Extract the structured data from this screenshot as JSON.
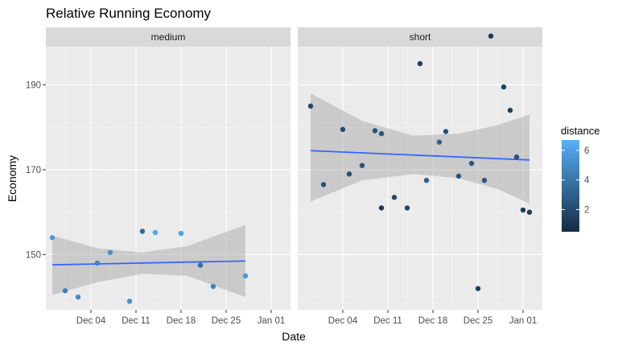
{
  "chart_data": {
    "type": "scatter",
    "title": "Relative Running Economy",
    "xlabel": "Date",
    "ylabel": "Economy",
    "x_ticks": [
      "Dec 04",
      "Dec 11",
      "Dec 18",
      "Dec 25",
      "Jan 01"
    ],
    "y_ticks": [
      150,
      170,
      190
    ],
    "xlim": [
      "2016-11-27",
      "2017-01-04"
    ],
    "ylim": [
      137,
      199
    ],
    "grid": true,
    "legend": {
      "title": "distance",
      "position": "right",
      "type": "colorbar",
      "range": [
        0.5,
        6.7
      ],
      "ticks": [
        2,
        4,
        6
      ],
      "low_color": "#132B43",
      "high_color": "#56B1F7"
    },
    "smooth": {
      "method": "lm",
      "se": true,
      "line_color": "#3366FF",
      "band_color": "#999999"
    },
    "panels": [
      {
        "label": "medium",
        "points": [
          {
            "x": "2016-11-28",
            "y": 154,
            "distance": 5.6
          },
          {
            "x": "2016-11-30",
            "y": 141.5,
            "distance": 4.4
          },
          {
            "x": "2016-12-02",
            "y": 140,
            "distance": 5.0
          },
          {
            "x": "2016-12-05",
            "y": 148,
            "distance": 4.7
          },
          {
            "x": "2016-12-07",
            "y": 150.5,
            "distance": 5.2
          },
          {
            "x": "2016-12-10",
            "y": 139,
            "distance": 5.2
          },
          {
            "x": "2016-12-12",
            "y": 155.5,
            "distance": 3.3
          },
          {
            "x": "2016-12-14",
            "y": 155.2,
            "distance": 6.2
          },
          {
            "x": "2016-12-18",
            "y": 155,
            "distance": 6.0
          },
          {
            "x": "2016-12-21",
            "y": 147.5,
            "distance": 3.7
          },
          {
            "x": "2016-12-23",
            "y": 142.5,
            "distance": 4.6
          },
          {
            "x": "2016-12-28",
            "y": 145,
            "distance": 5.6
          }
        ],
        "fit": {
          "x": [
            "2016-11-28",
            "2016-12-28"
          ],
          "y": [
            147.6,
            148.5
          ]
        },
        "band": {
          "x": [
            "2016-11-28",
            "2016-12-05",
            "2016-12-12",
            "2016-12-19",
            "2016-12-28"
          ],
          "upper": [
            154.5,
            151.5,
            150.5,
            152,
            157
          ],
          "lower": [
            140.5,
            143.5,
            145.5,
            145,
            140
          ]
        }
      },
      {
        "label": "short",
        "points": [
          {
            "x": "2016-11-29",
            "y": 185,
            "distance": 1.8
          },
          {
            "x": "2016-12-01",
            "y": 166.5,
            "distance": 2.2
          },
          {
            "x": "2016-12-04",
            "y": 179.5,
            "distance": 2.0
          },
          {
            "x": "2016-12-05",
            "y": 169,
            "distance": 2.3
          },
          {
            "x": "2016-12-07",
            "y": 171,
            "distance": 2.4
          },
          {
            "x": "2016-12-09",
            "y": 179.2,
            "distance": 2.4
          },
          {
            "x": "2016-12-10",
            "y": 178.5,
            "distance": 2.5
          },
          {
            "x": "2016-12-10",
            "y": 161,
            "distance": 1.0
          },
          {
            "x": "2016-12-12",
            "y": 163.5,
            "distance": 1.8
          },
          {
            "x": "2016-12-14",
            "y": 161,
            "distance": 1.6
          },
          {
            "x": "2016-12-16",
            "y": 195,
            "distance": 1.4
          },
          {
            "x": "2016-12-17",
            "y": 167.5,
            "distance": 3.0
          },
          {
            "x": "2016-12-19",
            "y": 176.5,
            "distance": 3.0
          },
          {
            "x": "2016-12-20",
            "y": 179,
            "distance": 2.3
          },
          {
            "x": "2016-12-22",
            "y": 168.5,
            "distance": 2.6
          },
          {
            "x": "2016-12-24",
            "y": 171.5,
            "distance": 2.6
          },
          {
            "x": "2016-12-25",
            "y": 142,
            "distance": 1.4
          },
          {
            "x": "2016-12-26",
            "y": 167.5,
            "distance": 2.6
          },
          {
            "x": "2016-12-27",
            "y": 201.5,
            "distance": 1.3
          },
          {
            "x": "2016-12-29",
            "y": 189.5,
            "distance": 1.5
          },
          {
            "x": "2016-12-30",
            "y": 184,
            "distance": 1.5
          },
          {
            "x": "2016-12-31",
            "y": 173,
            "distance": 2.5
          },
          {
            "x": "2017-01-01",
            "y": 160.5,
            "distance": 1.2
          },
          {
            "x": "2017-01-02",
            "y": 160,
            "distance": 1.3
          }
        ],
        "fit": {
          "x": [
            "2016-11-29",
            "2017-01-02"
          ],
          "y": [
            174.5,
            172.3
          ]
        },
        "band": {
          "x": [
            "2016-11-29",
            "2016-12-07",
            "2016-12-15",
            "2016-12-22",
            "2016-12-28",
            "2017-01-02"
          ],
          "upper": [
            188,
            181.5,
            178,
            178.5,
            180.5,
            183
          ],
          "lower": [
            162.5,
            167.5,
            169,
            168,
            165.5,
            162
          ]
        }
      }
    ]
  }
}
